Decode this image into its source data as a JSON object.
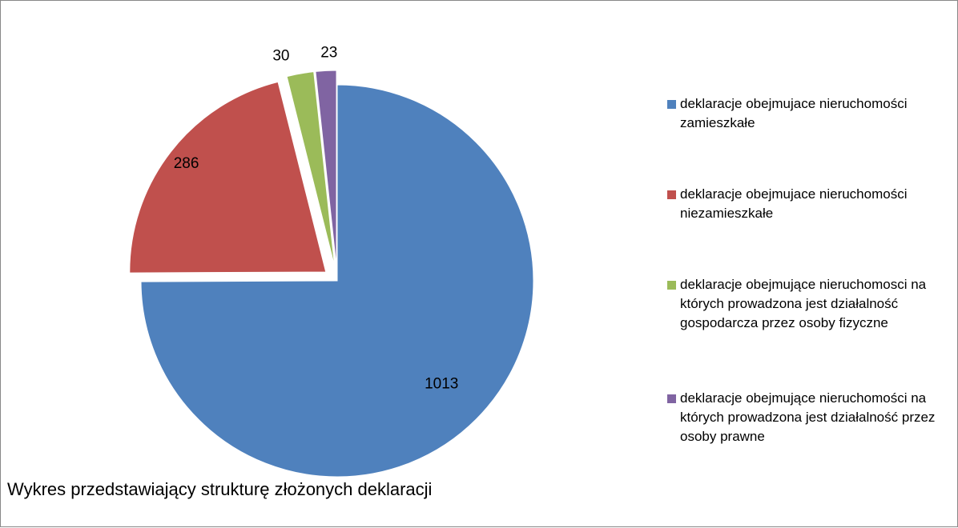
{
  "chart_data": {
    "type": "pie",
    "title": "Wykres przedstawiający strukturę złożonych deklaracji",
    "categories": [
      "deklaracje obejmujace nieruchomości zamieszkałe",
      "deklaracje obejmujace nieruchomości niezamieszkałe",
      "deklaracje obejmujące nieruchomosci na których prowadzona jest działalność gospodarcza przez osoby fizyczne",
      "deklaracje obejmujące nieruchomości na których prowadzona jest działalność przez osoby prawne"
    ],
    "values": [
      1013,
      286,
      30,
      23
    ],
    "colors": [
      "#4f81bd",
      "#c0504d",
      "#9bbb59",
      "#8064a2"
    ],
    "legend_position": "right"
  }
}
